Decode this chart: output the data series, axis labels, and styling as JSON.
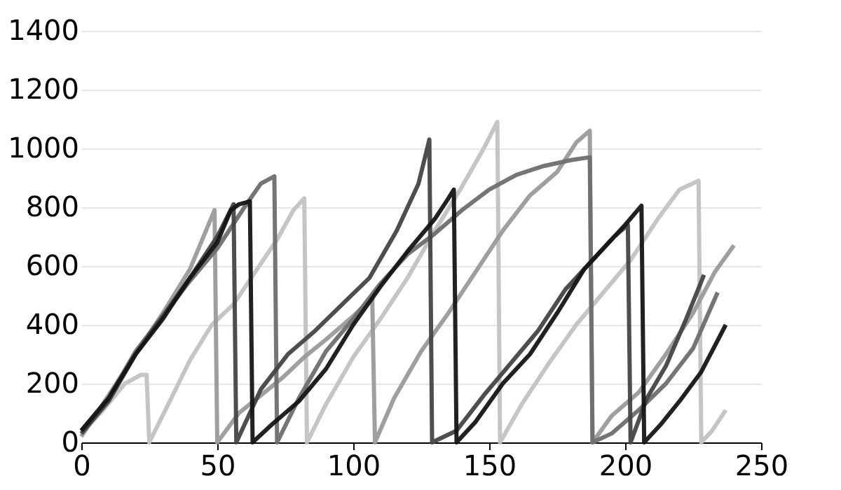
{
  "chart_data": {
    "type": "line",
    "xlim": [
      0,
      250
    ],
    "xticks": [
      0,
      50,
      100,
      150,
      200,
      250
    ],
    "ylim": [
      0,
      1400
    ],
    "yticks": [
      0,
      200,
      400,
      600,
      800,
      1000,
      1200,
      1400
    ],
    "grid": "y",
    "legend": false,
    "marker": "none",
    "line_style": "solid",
    "series": [
      {
        "color": "#c2c2c2",
        "x": [
          0,
          8,
          16,
          22,
          24,
          25,
          32,
          40,
          48,
          56,
          64,
          72,
          78,
          82,
          83,
          90,
          100,
          110,
          120,
          130,
          140,
          148,
          153,
          154,
          162,
          172,
          182,
          192,
          202,
          212,
          220,
          227,
          228,
          232,
          237
        ],
        "values": [
          30,
          110,
          200,
          230,
          230,
          0,
          130,
          280,
          400,
          470,
          580,
          690,
          790,
          830,
          0,
          130,
          290,
          420,
          560,
          720,
          870,
          1000,
          1090,
          0,
          130,
          270,
          400,
          510,
          620,
          760,
          860,
          890,
          0,
          40,
          110
        ]
      },
      {
        "color": "#9a9a9a",
        "x": [
          0,
          10,
          20,
          30,
          40,
          49,
          50,
          58,
          66,
          74,
          82,
          90,
          100,
          107,
          108,
          115,
          125,
          135,
          145,
          155,
          165,
          175,
          182,
          187,
          188,
          195,
          205,
          215,
          225,
          233,
          240
        ],
        "values": [
          20,
          160,
          300,
          440,
          590,
          790,
          0,
          100,
          160,
          220,
          290,
          350,
          430,
          490,
          0,
          150,
          310,
          440,
          580,
          720,
          840,
          920,
          1020,
          1060,
          0,
          90,
          170,
          300,
          440,
          580,
          670
        ]
      },
      {
        "color": "#6e6e6e",
        "x": [
          0,
          10,
          20,
          30,
          40,
          50,
          60,
          66,
          71,
          72,
          80,
          90,
          100,
          110,
          120,
          130,
          140,
          150,
          160,
          170,
          180,
          187,
          188,
          195,
          205,
          215,
          225,
          234
        ],
        "values": [
          40,
          150,
          310,
          430,
          550,
          660,
          800,
          880,
          905,
          0,
          150,
          310,
          420,
          540,
          640,
          710,
          790,
          860,
          910,
          940,
          960,
          970,
          0,
          30,
          110,
          200,
          320,
          510
        ]
      },
      {
        "color": "#444444",
        "x": [
          0,
          10,
          20,
          30,
          40,
          50,
          56,
          57,
          66,
          76,
          86,
          96,
          106,
          116,
          124,
          128,
          129,
          138,
          148,
          158,
          168,
          178,
          188,
          196,
          201,
          202,
          208,
          215,
          222,
          229
        ],
        "values": [
          30,
          140,
          300,
          430,
          560,
          700,
          810,
          0,
          180,
          300,
          380,
          470,
          560,
          720,
          880,
          1030,
          0,
          40,
          160,
          270,
          380,
          520,
          620,
          700,
          740,
          0,
          150,
          260,
          410,
          570
        ]
      },
      {
        "color": "#151515",
        "x": [
          0,
          10,
          20,
          30,
          40,
          50,
          55,
          58,
          62,
          63,
          70,
          80,
          90,
          100,
          110,
          120,
          130,
          135,
          137,
          138,
          145,
          155,
          165,
          175,
          185,
          195,
          200,
          206,
          207,
          213,
          220,
          228,
          237
        ],
        "values": [
          40,
          150,
          300,
          420,
          560,
          680,
          790,
          810,
          820,
          0,
          60,
          140,
          250,
          400,
          530,
          650,
          760,
          830,
          860,
          0,
          70,
          200,
          300,
          440,
          590,
          690,
          740,
          805,
          0,
          60,
          140,
          240,
          400
        ]
      }
    ]
  }
}
